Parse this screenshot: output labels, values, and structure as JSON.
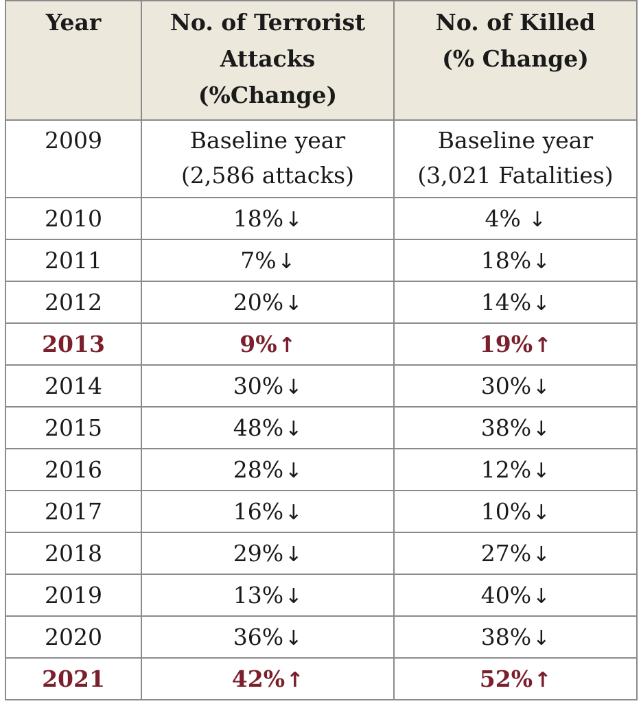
{
  "table": {
    "headers": [
      [
        "Year"
      ],
      [
        "No. of Terrorist",
        "Attacks",
        "(%Change)"
      ],
      [
        "No. of Killed",
        "(% Change)"
      ]
    ],
    "baseline": {
      "year": "2009",
      "attacks": [
        "Baseline year",
        "(2,586 attacks)"
      ],
      "killed": [
        "Baseline year",
        "(3,021 Fatalities)"
      ]
    },
    "rows": [
      {
        "year": "2010",
        "attacks": "18%",
        "attacks_dir": "↓",
        "killed": "4%",
        "killed_dir": " ↓",
        "highlight": false
      },
      {
        "year": "2011",
        "attacks": "7%",
        "attacks_dir": "↓",
        "killed": "18%",
        "killed_dir": "↓",
        "highlight": false
      },
      {
        "year": "2012",
        "attacks": "20%",
        "attacks_dir": "↓",
        "killed": "14%",
        "killed_dir": "↓",
        "highlight": false
      },
      {
        "year": "2013",
        "attacks": "9%",
        "attacks_dir": "↑",
        "killed": "19%",
        "killed_dir": "↑",
        "highlight": true
      },
      {
        "year": "2014",
        "attacks": "30%",
        "attacks_dir": "↓",
        "killed": "30%",
        "killed_dir": "↓",
        "highlight": false
      },
      {
        "year": "2015",
        "attacks": "48%",
        "attacks_dir": "↓",
        "killed": "38%",
        "killed_dir": "↓",
        "highlight": false
      },
      {
        "year": "2016",
        "attacks": "28%",
        "attacks_dir": "↓",
        "killed": "12%",
        "killed_dir": "↓",
        "highlight": false
      },
      {
        "year": "2017",
        "attacks": "16%",
        "attacks_dir": "↓",
        "killed": "10%",
        "killed_dir": "↓",
        "highlight": false
      },
      {
        "year": "2018",
        "attacks": "29%",
        "attacks_dir": "↓",
        "killed": "27%",
        "killed_dir": "↓",
        "highlight": false
      },
      {
        "year": "2019",
        "attacks": "13%",
        "attacks_dir": "↓",
        "killed": "40%",
        "killed_dir": "↓",
        "highlight": false
      },
      {
        "year": "2020",
        "attacks": "36%",
        "attacks_dir": "↓",
        "killed": "38%",
        "killed_dir": "↓",
        "highlight": false
      },
      {
        "year": "2021",
        "attacks": "42%",
        "attacks_dir": "↑",
        "killed": "52%",
        "killed_dir": "↑",
        "highlight": true
      }
    ],
    "colors": {
      "header_bg": "#ece8dc",
      "highlight_text": "#7a1f2b",
      "border": "#8a8a8a"
    }
  }
}
